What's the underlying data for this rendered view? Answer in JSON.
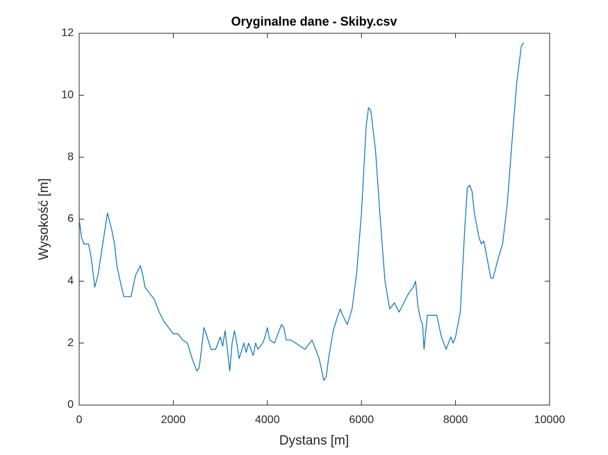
{
  "chart_data": {
    "type": "line",
    "title": "Oryginalne dane - Skiby.csv",
    "x_label": "Dystans [m]",
    "y_label": "Wysokość [m]",
    "x": [
      0,
      50,
      100,
      150,
      200,
      250,
      300,
      330,
      400,
      500,
      600,
      700,
      750,
      800,
      900,
      950,
      1100,
      1200,
      1300,
      1350,
      1400,
      1500,
      1600,
      1700,
      1800,
      1900,
      2000,
      2100,
      2200,
      2300,
      2400,
      2500,
      2550,
      2600,
      2650,
      2700,
      2800,
      2900,
      3000,
      3050,
      3100,
      3150,
      3200,
      3250,
      3300,
      3350,
      3400,
      3500,
      3550,
      3600,
      3700,
      3750,
      3800,
      3900,
      3950,
      4000,
      4050,
      4150,
      4250,
      4300,
      4350,
      4400,
      4500,
      4600,
      4700,
      4800,
      4900,
      4950,
      5000,
      5100,
      5200,
      5250,
      5300,
      5400,
      5500,
      5550,
      5600,
      5700,
      5800,
      5900,
      6000,
      6100,
      6150,
      6200,
      6300,
      6400,
      6500,
      6600,
      6700,
      6800,
      6900,
      7000,
      7100,
      7150,
      7200,
      7250,
      7300,
      7330,
      7400,
      7500,
      7600,
      7700,
      7800,
      7850,
      7900,
      7950,
      8000,
      8100,
      8200,
      8250,
      8300,
      8350,
      8400,
      8500,
      8550,
      8600,
      8700,
      8750,
      8800,
      8900,
      9000,
      9100,
      9200,
      9300,
      9350,
      9400,
      9450
    ],
    "series": [
      {
        "name": "Skiby",
        "color": "#0072bd",
        "values": [
          6.0,
          5.4,
          5.2,
          5.2,
          5.2,
          4.8,
          4.2,
          3.8,
          4.2,
          5.2,
          6.2,
          5.6,
          5.2,
          4.5,
          3.8,
          3.5,
          3.5,
          4.2,
          4.5,
          4.2,
          3.8,
          3.6,
          3.4,
          3.0,
          2.7,
          2.5,
          2.3,
          2.3,
          2.1,
          2.0,
          1.5,
          1.1,
          1.2,
          1.8,
          2.5,
          2.3,
          1.8,
          1.8,
          2.2,
          1.9,
          2.4,
          1.8,
          1.1,
          2.0,
          2.4,
          2.0,
          1.5,
          2.0,
          1.7,
          2.0,
          1.6,
          2.0,
          1.8,
          2.0,
          2.2,
          2.5,
          2.1,
          2.0,
          2.4,
          2.6,
          2.5,
          2.1,
          2.1,
          2.0,
          1.9,
          1.8,
          2.0,
          2.1,
          1.9,
          1.5,
          0.8,
          0.9,
          1.5,
          2.4,
          2.9,
          3.1,
          2.9,
          2.6,
          3.1,
          4.3,
          6.2,
          9.0,
          9.6,
          9.5,
          8.2,
          6.0,
          4.0,
          3.1,
          3.3,
          3.0,
          3.3,
          3.6,
          3.8,
          4.0,
          3.2,
          2.8,
          2.6,
          1.8,
          2.9,
          2.9,
          2.9,
          2.2,
          1.8,
          2.0,
          2.2,
          2.0,
          2.2,
          3.0,
          5.8,
          7.0,
          7.1,
          6.9,
          6.2,
          5.4,
          5.2,
          5.3,
          4.5,
          4.1,
          4.1,
          4.7,
          5.2,
          6.5,
          8.5,
          10.4,
          11.0,
          11.6,
          11.7
        ]
      }
    ],
    "xlim": [
      0,
      10000
    ],
    "xticks": [
      0,
      2000,
      4000,
      6000,
      8000,
      10000
    ],
    "ylim": [
      0,
      12
    ],
    "yticks": [
      0,
      2,
      4,
      6,
      8,
      10,
      12
    ],
    "grid": false
  }
}
